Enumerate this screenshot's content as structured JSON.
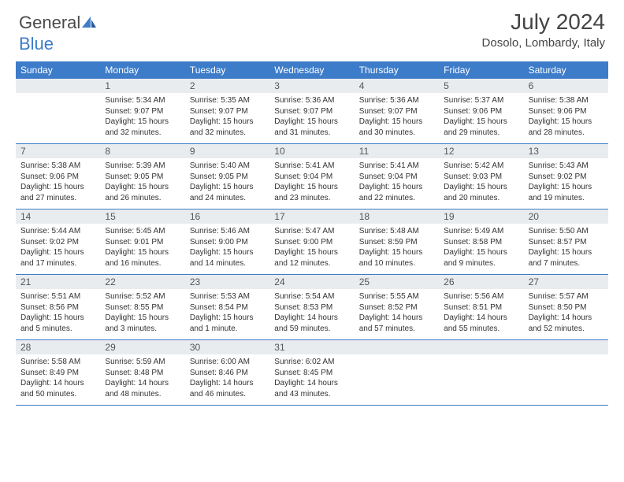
{
  "logo": {
    "text1": "General",
    "text2": "Blue"
  },
  "header": {
    "month_title": "July 2024",
    "location": "Dosolo, Lombardy, Italy"
  },
  "colors": {
    "header_bg": "#3d7cc9",
    "daynum_bg": "#e9ecef",
    "week_border": "#3d7cc9",
    "text": "#333333",
    "page_bg": "#ffffff"
  },
  "day_labels": [
    "Sunday",
    "Monday",
    "Tuesday",
    "Wednesday",
    "Thursday",
    "Friday",
    "Saturday"
  ],
  "weeks": [
    [
      null,
      {
        "n": "1",
        "sr": "Sunrise: 5:34 AM",
        "ss": "Sunset: 9:07 PM",
        "dl": "Daylight: 15 hours and 32 minutes."
      },
      {
        "n": "2",
        "sr": "Sunrise: 5:35 AM",
        "ss": "Sunset: 9:07 PM",
        "dl": "Daylight: 15 hours and 32 minutes."
      },
      {
        "n": "3",
        "sr": "Sunrise: 5:36 AM",
        "ss": "Sunset: 9:07 PM",
        "dl": "Daylight: 15 hours and 31 minutes."
      },
      {
        "n": "4",
        "sr": "Sunrise: 5:36 AM",
        "ss": "Sunset: 9:07 PM",
        "dl": "Daylight: 15 hours and 30 minutes."
      },
      {
        "n": "5",
        "sr": "Sunrise: 5:37 AM",
        "ss": "Sunset: 9:06 PM",
        "dl": "Daylight: 15 hours and 29 minutes."
      },
      {
        "n": "6",
        "sr": "Sunrise: 5:38 AM",
        "ss": "Sunset: 9:06 PM",
        "dl": "Daylight: 15 hours and 28 minutes."
      }
    ],
    [
      {
        "n": "7",
        "sr": "Sunrise: 5:38 AM",
        "ss": "Sunset: 9:06 PM",
        "dl": "Daylight: 15 hours and 27 minutes."
      },
      {
        "n": "8",
        "sr": "Sunrise: 5:39 AM",
        "ss": "Sunset: 9:05 PM",
        "dl": "Daylight: 15 hours and 26 minutes."
      },
      {
        "n": "9",
        "sr": "Sunrise: 5:40 AM",
        "ss": "Sunset: 9:05 PM",
        "dl": "Daylight: 15 hours and 24 minutes."
      },
      {
        "n": "10",
        "sr": "Sunrise: 5:41 AM",
        "ss": "Sunset: 9:04 PM",
        "dl": "Daylight: 15 hours and 23 minutes."
      },
      {
        "n": "11",
        "sr": "Sunrise: 5:41 AM",
        "ss": "Sunset: 9:04 PM",
        "dl": "Daylight: 15 hours and 22 minutes."
      },
      {
        "n": "12",
        "sr": "Sunrise: 5:42 AM",
        "ss": "Sunset: 9:03 PM",
        "dl": "Daylight: 15 hours and 20 minutes."
      },
      {
        "n": "13",
        "sr": "Sunrise: 5:43 AM",
        "ss": "Sunset: 9:02 PM",
        "dl": "Daylight: 15 hours and 19 minutes."
      }
    ],
    [
      {
        "n": "14",
        "sr": "Sunrise: 5:44 AM",
        "ss": "Sunset: 9:02 PM",
        "dl": "Daylight: 15 hours and 17 minutes."
      },
      {
        "n": "15",
        "sr": "Sunrise: 5:45 AM",
        "ss": "Sunset: 9:01 PM",
        "dl": "Daylight: 15 hours and 16 minutes."
      },
      {
        "n": "16",
        "sr": "Sunrise: 5:46 AM",
        "ss": "Sunset: 9:00 PM",
        "dl": "Daylight: 15 hours and 14 minutes."
      },
      {
        "n": "17",
        "sr": "Sunrise: 5:47 AM",
        "ss": "Sunset: 9:00 PM",
        "dl": "Daylight: 15 hours and 12 minutes."
      },
      {
        "n": "18",
        "sr": "Sunrise: 5:48 AM",
        "ss": "Sunset: 8:59 PM",
        "dl": "Daylight: 15 hours and 10 minutes."
      },
      {
        "n": "19",
        "sr": "Sunrise: 5:49 AM",
        "ss": "Sunset: 8:58 PM",
        "dl": "Daylight: 15 hours and 9 minutes."
      },
      {
        "n": "20",
        "sr": "Sunrise: 5:50 AM",
        "ss": "Sunset: 8:57 PM",
        "dl": "Daylight: 15 hours and 7 minutes."
      }
    ],
    [
      {
        "n": "21",
        "sr": "Sunrise: 5:51 AM",
        "ss": "Sunset: 8:56 PM",
        "dl": "Daylight: 15 hours and 5 minutes."
      },
      {
        "n": "22",
        "sr": "Sunrise: 5:52 AM",
        "ss": "Sunset: 8:55 PM",
        "dl": "Daylight: 15 hours and 3 minutes."
      },
      {
        "n": "23",
        "sr": "Sunrise: 5:53 AM",
        "ss": "Sunset: 8:54 PM",
        "dl": "Daylight: 15 hours and 1 minute."
      },
      {
        "n": "24",
        "sr": "Sunrise: 5:54 AM",
        "ss": "Sunset: 8:53 PM",
        "dl": "Daylight: 14 hours and 59 minutes."
      },
      {
        "n": "25",
        "sr": "Sunrise: 5:55 AM",
        "ss": "Sunset: 8:52 PM",
        "dl": "Daylight: 14 hours and 57 minutes."
      },
      {
        "n": "26",
        "sr": "Sunrise: 5:56 AM",
        "ss": "Sunset: 8:51 PM",
        "dl": "Daylight: 14 hours and 55 minutes."
      },
      {
        "n": "27",
        "sr": "Sunrise: 5:57 AM",
        "ss": "Sunset: 8:50 PM",
        "dl": "Daylight: 14 hours and 52 minutes."
      }
    ],
    [
      {
        "n": "28",
        "sr": "Sunrise: 5:58 AM",
        "ss": "Sunset: 8:49 PM",
        "dl": "Daylight: 14 hours and 50 minutes."
      },
      {
        "n": "29",
        "sr": "Sunrise: 5:59 AM",
        "ss": "Sunset: 8:48 PM",
        "dl": "Daylight: 14 hours and 48 minutes."
      },
      {
        "n": "30",
        "sr": "Sunrise: 6:00 AM",
        "ss": "Sunset: 8:46 PM",
        "dl": "Daylight: 14 hours and 46 minutes."
      },
      {
        "n": "31",
        "sr": "Sunrise: 6:02 AM",
        "ss": "Sunset: 8:45 PM",
        "dl": "Daylight: 14 hours and 43 minutes."
      },
      null,
      null,
      null
    ]
  ]
}
